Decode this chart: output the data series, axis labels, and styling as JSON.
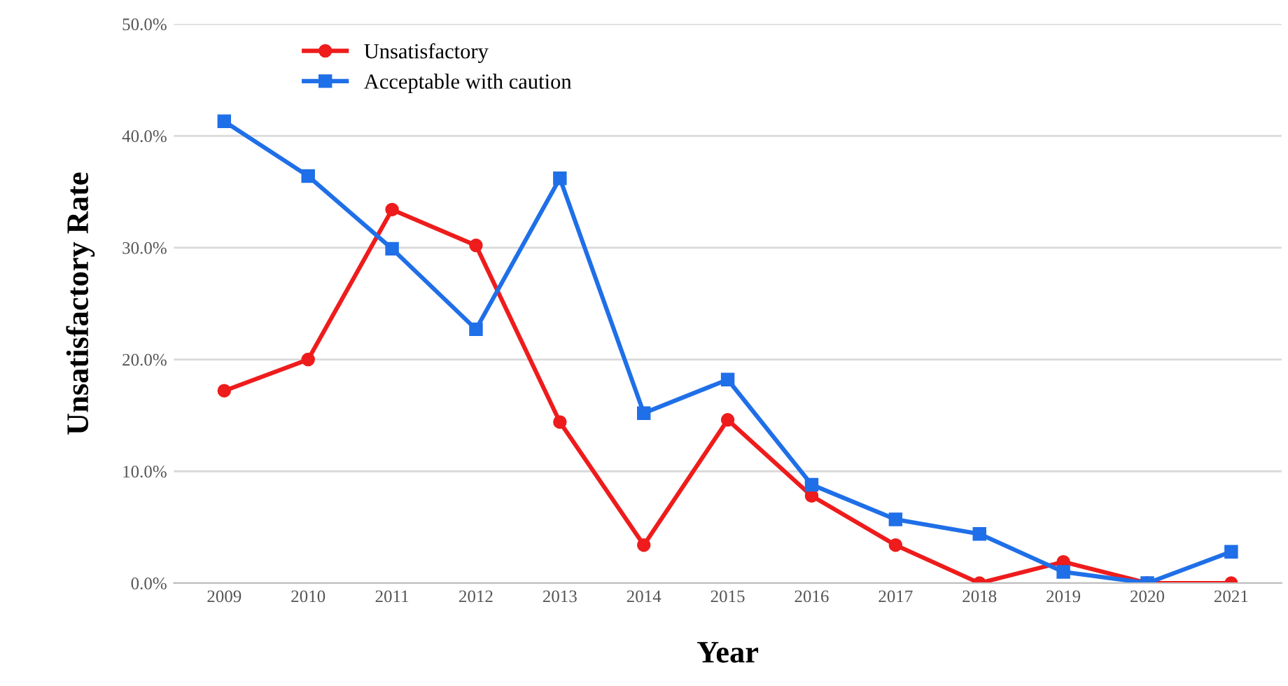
{
  "chart_data": {
    "type": "line",
    "xlabel": "Year",
    "ylabel": "Unsatisfactory Rate",
    "categories": [
      "2009",
      "2010",
      "2011",
      "2012",
      "2013",
      "2014",
      "2015",
      "2016",
      "2017",
      "2018",
      "2019",
      "2020",
      "2021"
    ],
    "series": [
      {
        "name": "Unsatisfactory",
        "color": "#ee1c1c",
        "marker": "circle",
        "values": [
          17.2,
          20.0,
          33.4,
          30.2,
          14.4,
          3.4,
          14.6,
          7.8,
          3.4,
          0,
          1.9,
          0,
          0
        ]
      },
      {
        "name": "Acceptable with caution",
        "color": "#1f6fe8",
        "marker": "square",
        "values": [
          41.3,
          36.4,
          29.9,
          22.7,
          36.2,
          15.2,
          18.2,
          8.8,
          5.7,
          4.4,
          1.0,
          0,
          2.8
        ]
      }
    ],
    "ylim": [
      0,
      50
    ],
    "yticks": [
      {
        "value": 0,
        "label": "0.0%"
      },
      {
        "value": 10,
        "label": "10.0%"
      },
      {
        "value": 20,
        "label": "20.0%"
      },
      {
        "value": 30,
        "label": "30.0%"
      },
      {
        "value": 40,
        "label": "40.0%"
      },
      {
        "value": 50,
        "label": "50.0%"
      }
    ],
    "grid": "y",
    "legend": "top left",
    "line_style": "solid"
  }
}
